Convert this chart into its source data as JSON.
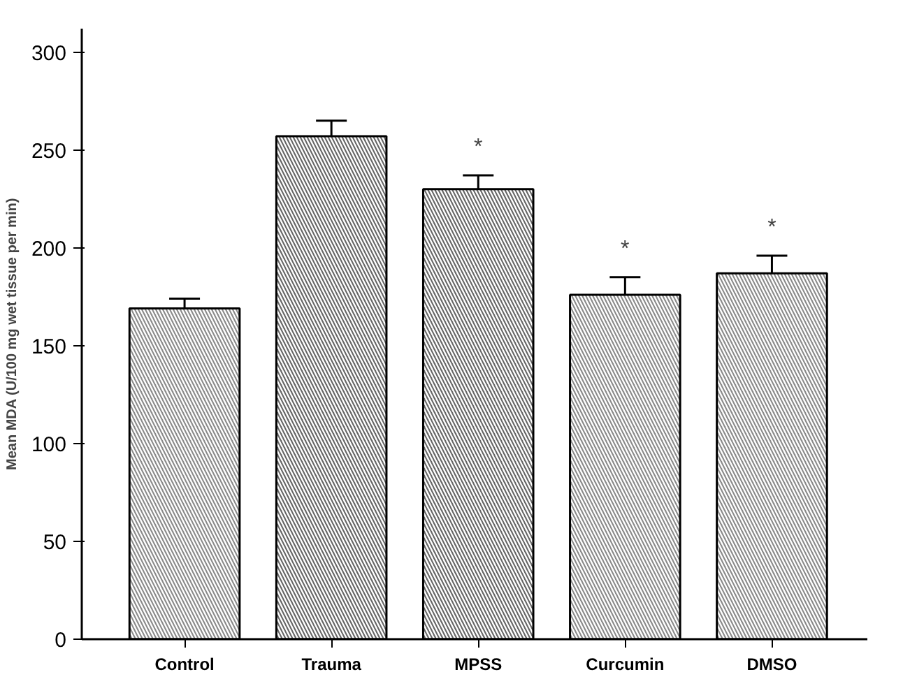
{
  "chart_data": {
    "type": "bar",
    "ylabel": "Mean MDA (U/100 mg wet tissue per min)",
    "categories": [
      "Control",
      "Trauma",
      "MPSS",
      "Curcumin",
      "DMSO"
    ],
    "values": [
      169,
      257,
      230,
      176,
      187
    ],
    "errors": [
      5,
      8,
      7,
      9,
      9
    ],
    "colors": [
      "#8a8a8a",
      "#666666",
      "#666666",
      "#8a8a8a",
      "#8a8a8a"
    ],
    "ylim": [
      0,
      312
    ],
    "yticks": [
      0,
      50,
      100,
      150,
      200,
      250,
      300
    ],
    "grid": false,
    "annotations": [
      {
        "text": "*",
        "x": "MPSS",
        "y": 230
      },
      {
        "text": "*",
        "x": "Curcumin",
        "y": 176
      },
      {
        "text": "*",
        "x": "DMSO",
        "y": 187
      }
    ]
  }
}
